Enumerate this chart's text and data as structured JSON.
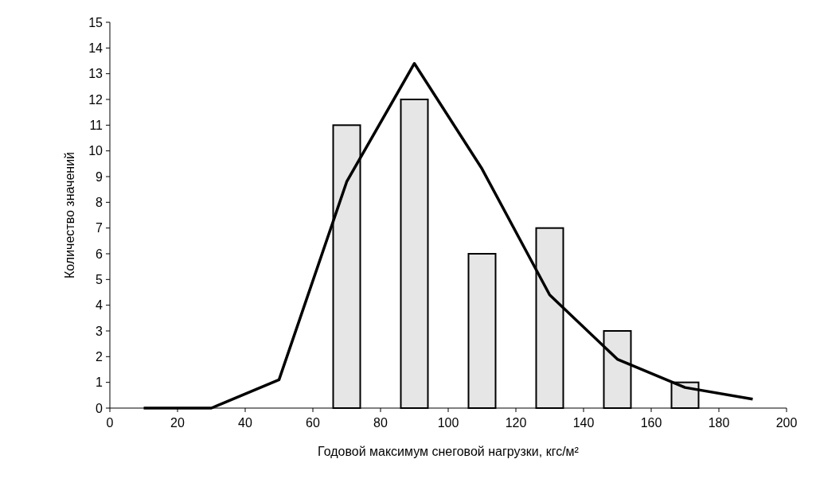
{
  "chart_data": {
    "type": "bar",
    "xlabel": "Годовой максимум снеговой нагрузки, кгс/м²",
    "ylabel": "Количество значений",
    "xlim": [
      0,
      200
    ],
    "xticks": [
      0,
      20,
      40,
      60,
      80,
      100,
      120,
      140,
      160,
      180,
      200
    ],
    "ylim": [
      0,
      15
    ],
    "yticks": [
      0,
      1,
      2,
      3,
      4,
      5,
      6,
      7,
      8,
      9,
      10,
      11,
      12,
      13,
      14,
      15
    ],
    "series": [
      {
        "color": "#e6e6e6",
        "x": [
          70,
          90,
          110,
          130,
          150,
          170
        ],
        "values": [
          11,
          12,
          6,
          7,
          3,
          1
        ]
      },
      {
        "type": "line",
        "color": "#000000",
        "x": [
          10,
          30,
          50,
          70,
          90,
          110,
          130,
          150,
          170,
          190
        ],
        "values": [
          0,
          0,
          1.1,
          8.8,
          13.4,
          9.3,
          4.4,
          1.9,
          0.8,
          0.35
        ]
      }
    ],
    "grid": false
  }
}
